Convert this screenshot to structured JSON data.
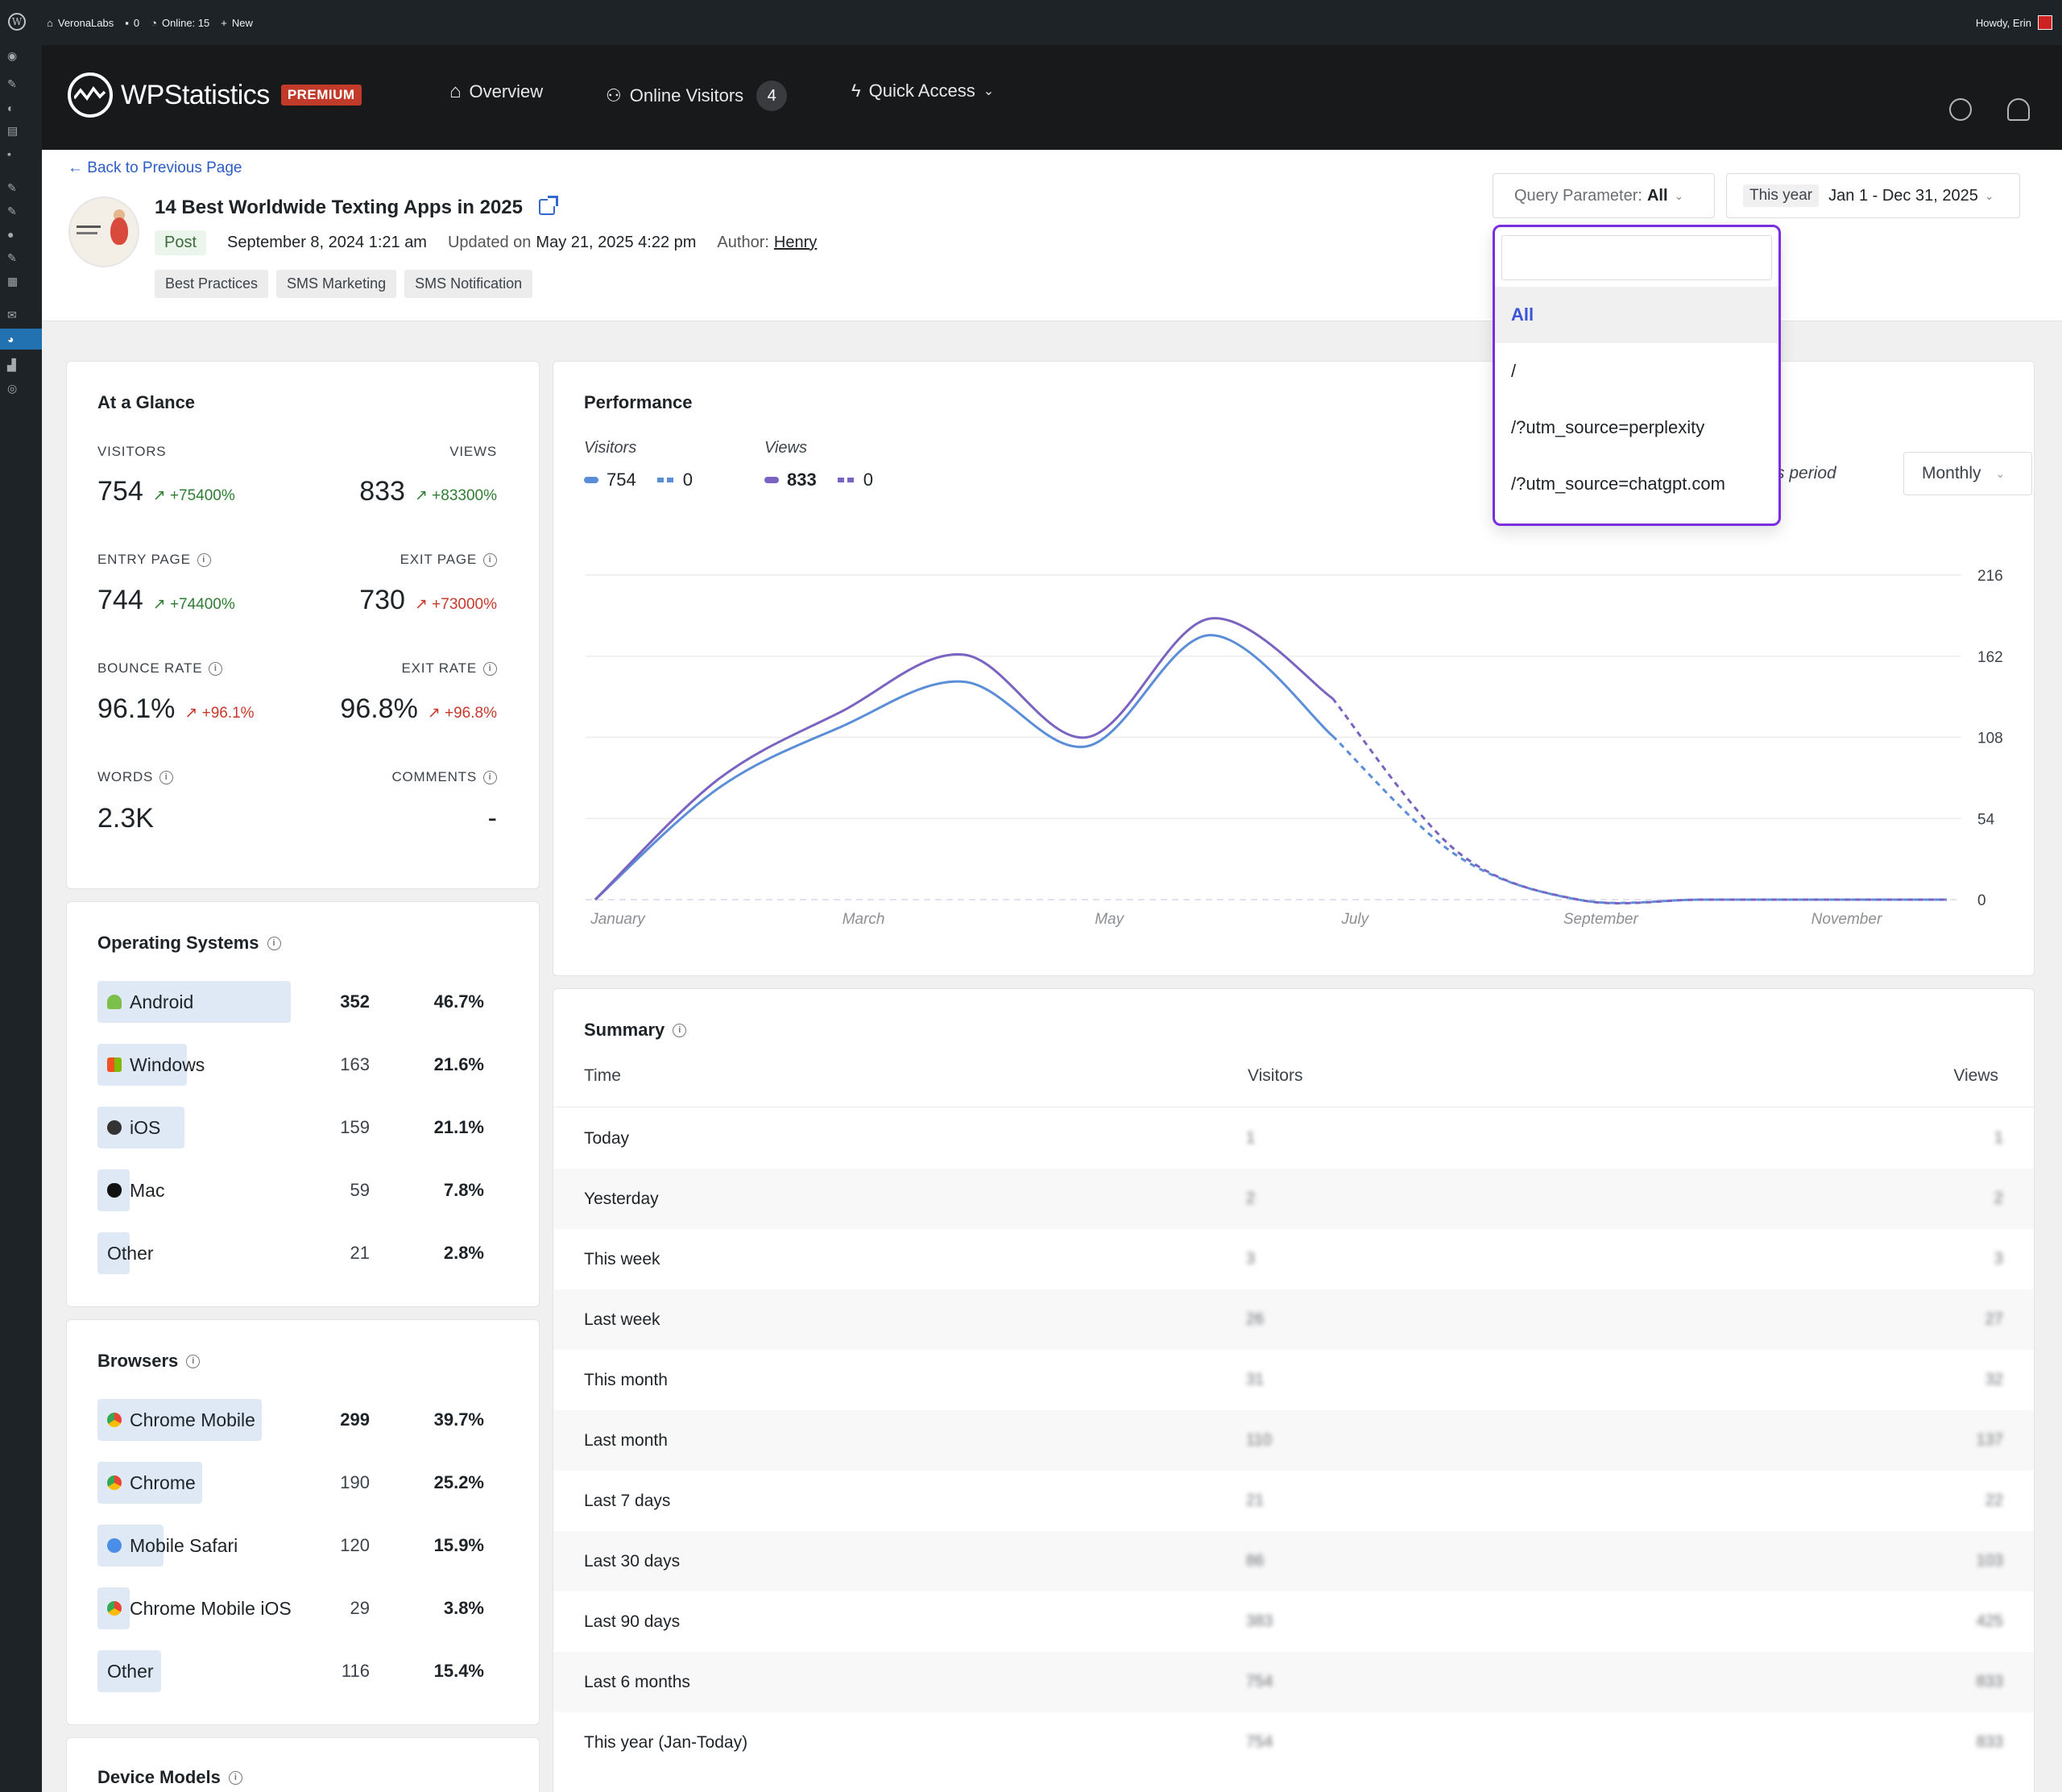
{
  "admin_bar": {
    "site_name": "VeronaLabs",
    "comments_count": "0",
    "online": "Online: 15",
    "new_label": "New",
    "greeting": "Howdy, Erin"
  },
  "header": {
    "logo_text": "WPStatistics",
    "premium_label": "PREMIUM",
    "nav": {
      "overview": "Overview",
      "online_visitors": "Online Visitors",
      "online_count": "4",
      "quick_access": "Quick Access"
    }
  },
  "page": {
    "back_label": "Back to Previous Page",
    "title": "14 Best Worldwide Texting Apps in 2025",
    "post_type": "Post",
    "published": "September 8, 2024 1:21 am",
    "updated_prefix": "Updated on",
    "updated": "May 21, 2025 4:22 pm",
    "author_prefix": "Author:",
    "author": "Henry",
    "tags": [
      "Best Practices",
      "SMS Marketing",
      "SMS Notification"
    ]
  },
  "filters": {
    "query_label": "Query Parameter:",
    "query_value": "All",
    "date_preset": "This year",
    "date_range": "Jan 1 - Dec 31, 2025",
    "query_options": [
      "All",
      "/",
      "/?utm_source=perplexity",
      "/?utm_source=chatgpt.com"
    ],
    "selected_option": "All"
  },
  "glance": {
    "title": "At a Glance",
    "visitors": {
      "label": "VISITORS",
      "value": "754",
      "change": "+75400%"
    },
    "views": {
      "label": "VIEWS",
      "value": "833",
      "change": "+83300%"
    },
    "entry_page": {
      "label": "ENTRY PAGE",
      "value": "744",
      "change": "+74400%"
    },
    "exit_page": {
      "label": "EXIT PAGE",
      "value": "730",
      "change": "+73000%"
    },
    "bounce_rate": {
      "label": "BOUNCE RATE",
      "value": "96.1%",
      "change": "+96.1%"
    },
    "exit_rate": {
      "label": "EXIT RATE",
      "value": "96.8%",
      "change": "+96.8%"
    },
    "words": {
      "label": "WORDS",
      "value": "2.3K"
    },
    "comments": {
      "label": "COMMENTS",
      "value": "-"
    }
  },
  "os": {
    "title": "Operating Systems",
    "items": [
      {
        "name": "Android",
        "count": "352",
        "pct": "46.7%",
        "share": 46.7
      },
      {
        "name": "Windows",
        "count": "163",
        "pct": "21.6%",
        "share": 21.6
      },
      {
        "name": "iOS",
        "count": "159",
        "pct": "21.1%",
        "share": 21.1
      },
      {
        "name": "Mac",
        "count": "59",
        "pct": "7.8%",
        "share": 7.8
      },
      {
        "name": "Other",
        "count": "21",
        "pct": "2.8%",
        "share": 2.8
      }
    ]
  },
  "browsers": {
    "title": "Browsers",
    "items": [
      {
        "name": "Chrome Mobile",
        "count": "299",
        "pct": "39.7%",
        "share": 39.7
      },
      {
        "name": "Chrome",
        "count": "190",
        "pct": "25.2%",
        "share": 25.2
      },
      {
        "name": "Mobile Safari",
        "count": "120",
        "pct": "15.9%",
        "share": 15.9
      },
      {
        "name": "Chrome Mobile iOS",
        "count": "29",
        "pct": "3.8%",
        "share": 3.8
      },
      {
        "name": "Other",
        "count": "116",
        "pct": "15.4%",
        "share": 15.4
      }
    ]
  },
  "device_models": {
    "title": "Device Models"
  },
  "performance": {
    "title": "Performance",
    "visitors_label": "Visitors",
    "views_label": "Views",
    "visitors_value": "754",
    "visitors_prev": "0",
    "views_value": "833",
    "views_prev": "0",
    "period_label": "s period",
    "period_value": "Monthly",
    "colors": {
      "visitors": "#5b8ed8",
      "views": "#7a63c1"
    }
  },
  "chart_data": {
    "type": "line",
    "x": [
      "January",
      "February",
      "March",
      "April",
      "May",
      "June",
      "July",
      "August",
      "September",
      "October",
      "November",
      "December"
    ],
    "tick_labels": [
      "January",
      "March",
      "May",
      "July",
      "September",
      "November"
    ],
    "yticks": [
      216,
      162,
      108,
      54,
      0
    ],
    "ylim": [
      0,
      216
    ],
    "series": [
      {
        "name": "Visitors",
        "values": [
          0,
          74,
          115,
          145,
          102,
          176,
          109,
          30,
          0,
          0,
          0,
          0
        ],
        "color": "#5b8ed8"
      },
      {
        "name": "Views",
        "values": [
          0,
          80,
          125,
          163,
          108,
          187,
          134,
          33,
          0,
          0,
          0,
          0
        ],
        "color": "#7a63c1"
      }
    ],
    "dashed_from_index": 6
  },
  "summary": {
    "title": "Summary",
    "headers": {
      "time": "Time",
      "visitors": "Visitors",
      "views": "Views"
    },
    "rows": [
      {
        "time": "Today",
        "visitors": "1",
        "views": "1"
      },
      {
        "time": "Yesterday",
        "visitors": "2",
        "views": "2"
      },
      {
        "time": "This week",
        "visitors": "3",
        "views": "3"
      },
      {
        "time": "Last week",
        "visitors": "26",
        "views": "27"
      },
      {
        "time": "This month",
        "visitors": "31",
        "views": "32"
      },
      {
        "time": "Last month",
        "visitors": "110",
        "views": "137"
      },
      {
        "time": "Last 7 days",
        "visitors": "21",
        "views": "22"
      },
      {
        "time": "Last 30 days",
        "visitors": "86",
        "views": "103"
      },
      {
        "time": "Last 90 days",
        "visitors": "383",
        "views": "425"
      },
      {
        "time": "Last 6 months",
        "visitors": "754",
        "views": "833"
      },
      {
        "time": "This year (Jan-Today)",
        "visitors": "754",
        "views": "833"
      }
    ]
  }
}
